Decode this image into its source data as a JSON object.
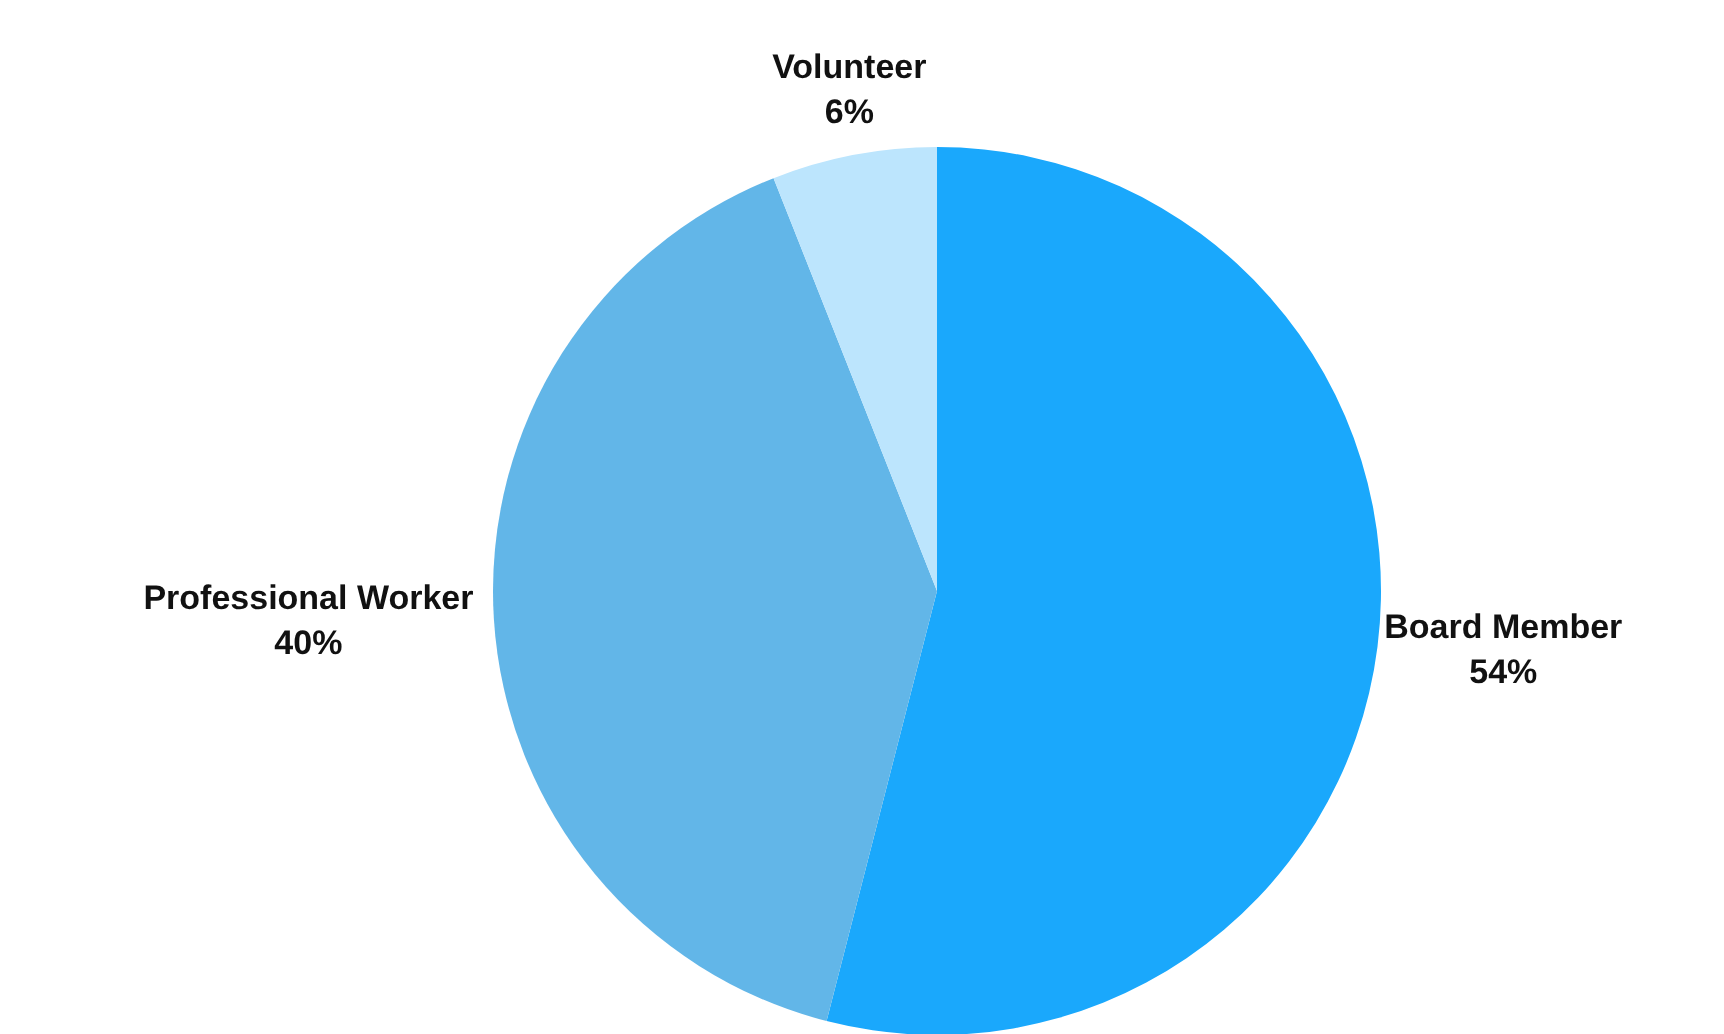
{
  "chart_data": {
    "type": "pie",
    "categories": [
      "Board Member",
      "Professional Worker",
      "Volunteer"
    ],
    "values": [
      54,
      40,
      6
    ],
    "colors": [
      "#1aa8fc",
      "#62b6e8",
      "#bce5fd"
    ],
    "value_labels": [
      "54%",
      "40%",
      "6%"
    ]
  }
}
